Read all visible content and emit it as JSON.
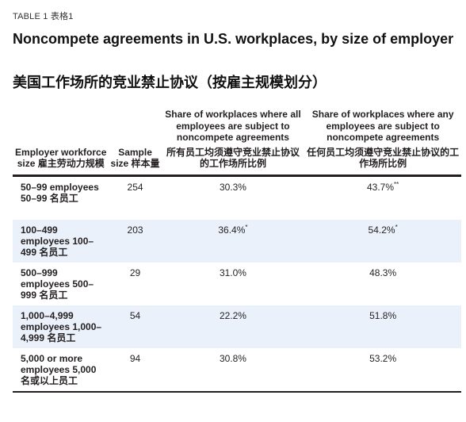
{
  "tag": "TABLE 1 表格1",
  "title_en": "Noncompete agreements in U.S. workplaces, by size of employer",
  "title_zh": "美国工作场所的竞业禁止协议（按雇主规模划分）",
  "headers": {
    "employer": "Employer workforce size 雇主劳动力规模",
    "sample": "Sample size 样本量",
    "all_en": "Share of workplaces where all employees are subject to noncompete agreements",
    "all_zh": "所有员工均须遵守竞业禁止协议的工作场所比例",
    "any_en": "Share of workplaces where any employees are subject to noncompete agreements",
    "any_zh": "任何员工均须遵守竞业禁止协议的工作场所比例"
  },
  "rows": [
    {
      "label": "50–99 employees 50–99 名员工",
      "sample": "254",
      "all": "30.3%",
      "all_mark": "",
      "any": "43.7%",
      "any_mark": "**"
    },
    {
      "label": "100–499 employees 100–499 名员工",
      "sample": "203",
      "all": "36.4%",
      "all_mark": "*",
      "any": "54.2%",
      "any_mark": "*"
    },
    {
      "label": "500–999 employees 500–999 名员工",
      "sample": "29",
      "all": "31.0%",
      "all_mark": "",
      "any": "48.3%",
      "any_mark": ""
    },
    {
      "label": "1,000–4,999 employees 1,000–4,999 名员工",
      "sample": "54",
      "all": "22.2%",
      "all_mark": "",
      "any": "51.8%",
      "any_mark": ""
    },
    {
      "label": "5,000 or more employees 5,000 名或以上员工",
      "sample": "94",
      "all": "30.8%",
      "all_mark": "",
      "any": "53.2%",
      "any_mark": ""
    }
  ],
  "colors": {
    "row_shade": "#eaf1fa",
    "rule": "#231f20"
  }
}
